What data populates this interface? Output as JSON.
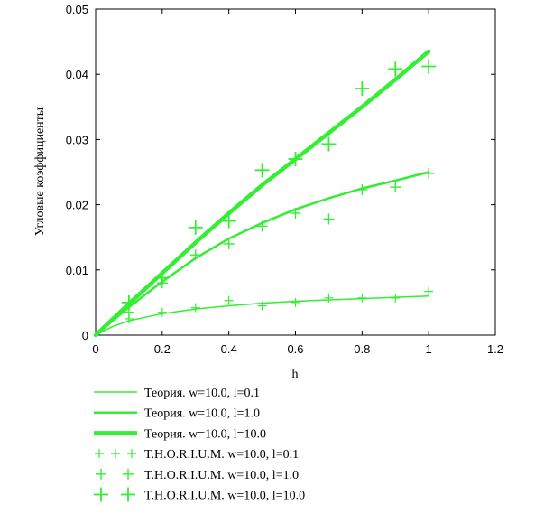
{
  "chart_data": {
    "type": "line",
    "xlabel": "h",
    "ylabel": "Угловые коэффициенты",
    "xlim": [
      0,
      1.2
    ],
    "ylim": [
      0,
      0.05
    ],
    "x_ticks": [
      "0",
      "0.2",
      "0.4",
      "0.6",
      "0.8",
      "1",
      "1.2"
    ],
    "y_ticks": [
      "0",
      "0.01",
      "0.02",
      "0.03",
      "0.04",
      "0.05"
    ],
    "grid": false,
    "legend_position": "bottom",
    "line_color": "#33ee33",
    "series": [
      {
        "name": "Теория. w=10.0, l=0.1",
        "kind": "line",
        "weight": "thin",
        "x": [
          0,
          0.05,
          0.1,
          0.2,
          0.3,
          0.4,
          0.5,
          0.6,
          0.7,
          0.8,
          0.9,
          1.0
        ],
        "y": [
          0,
          0.0013,
          0.0022,
          0.0033,
          0.004,
          0.0045,
          0.0049,
          0.0052,
          0.0054,
          0.0056,
          0.0058,
          0.006
        ]
      },
      {
        "name": "Теория. w=10.0, l=1.0",
        "kind": "line",
        "weight": "medium",
        "x": [
          0,
          0.1,
          0.2,
          0.3,
          0.4,
          0.5,
          0.6,
          0.7,
          0.8,
          0.9,
          1.0
        ],
        "y": [
          0,
          0.0043,
          0.0082,
          0.0118,
          0.0148,
          0.0172,
          0.0193,
          0.021,
          0.0225,
          0.0237,
          0.025
        ]
      },
      {
        "name": "Теория. w=10.0, l=10.0",
        "kind": "line",
        "weight": "thick",
        "x": [
          0,
          0.1,
          0.2,
          0.3,
          0.4,
          0.5,
          0.6,
          0.7,
          0.8,
          0.9,
          1.0
        ],
        "y": [
          0,
          0.0048,
          0.0095,
          0.0142,
          0.0187,
          0.023,
          0.027,
          0.031,
          0.035,
          0.0392,
          0.0435
        ]
      },
      {
        "name": "T.H.O.R.I.U.M. w=10.0, l=0.1",
        "kind": "marker",
        "weight": "thin",
        "x": [
          0.1,
          0.2,
          0.3,
          0.4,
          0.5,
          0.6,
          0.7,
          0.8,
          0.9,
          1.0
        ],
        "y": [
          0.0025,
          0.0035,
          0.0042,
          0.0053,
          0.0045,
          0.005,
          0.0057,
          0.0057,
          0.0057,
          0.0067
        ]
      },
      {
        "name": "T.H.O.R.I.U.M. w=10.0, l=1.0",
        "kind": "marker",
        "weight": "medium",
        "x": [
          0.1,
          0.2,
          0.3,
          0.4,
          0.5,
          0.6,
          0.7,
          0.8,
          0.9,
          1.0
        ],
        "y": [
          0.0035,
          0.008,
          0.0123,
          0.014,
          0.0167,
          0.0187,
          0.0178,
          0.0223,
          0.0227,
          0.0248
        ]
      },
      {
        "name": "T.H.O.R.I.U.M. w=10.0, l=10.0",
        "kind": "marker",
        "weight": "thick",
        "x": [
          0.1,
          0.2,
          0.3,
          0.4,
          0.5,
          0.6,
          0.7,
          0.8,
          0.9,
          1.0
        ],
        "y": [
          0.005,
          0.0088,
          0.0165,
          0.0175,
          0.0253,
          0.027,
          0.0293,
          0.0378,
          0.0408,
          0.0412
        ]
      }
    ]
  }
}
